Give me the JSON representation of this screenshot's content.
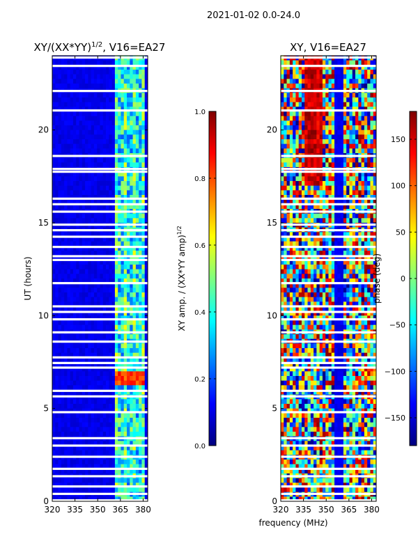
{
  "page_title": "2021-01-02 0.0-24.0",
  "shared_xlabel": "frequency (MHz)",
  "colors": {
    "jet": [
      "#00007f",
      "#0000ff",
      "#007fff",
      "#00ffff",
      "#7fff7f",
      "#ffff00",
      "#ff7f00",
      "#ff0000",
      "#7f0000"
    ]
  },
  "chart_data": [
    {
      "type": "heatmap",
      "name": "amplitude-ratio",
      "title_main": "XY/(XX*YY)",
      "title_sup": "1/2",
      "title_tail": ", V16=EA27",
      "xlabel": "",
      "ylabel": "UT (hours)",
      "xlim": [
        320,
        383
      ],
      "ylim": [
        0,
        24
      ],
      "xticks": [
        320,
        335,
        350,
        365,
        380
      ],
      "yticks": [
        0,
        5,
        10,
        15,
        20
      ],
      "colorbar": {
        "label_main": "XY amp. / (XX*YY amp)",
        "label_sup": "1/2",
        "range": [
          0.0,
          1.0
        ],
        "ticks": [
          "0.0",
          "0.2",
          "0.4",
          "0.6",
          "0.8",
          "1.0"
        ],
        "tick_values": [
          0.0,
          0.2,
          0.4,
          0.6,
          0.8,
          1.0
        ]
      },
      "blank_rows_ut": [
        23.9,
        23.45,
        22.1,
        21.05,
        18.6,
        17.9,
        17.75,
        16.3,
        16.0,
        15.6,
        14.9,
        14.6,
        14.25,
        13.7,
        13.2,
        13.0,
        11.75,
        10.5,
        10.2,
        9.8,
        9.1,
        8.6,
        7.75,
        7.45,
        7.2,
        5.95,
        5.65,
        4.8,
        3.4,
        3.0,
        2.4,
        1.75,
        1.35,
        0.8,
        0.4,
        0.05
      ],
      "bright_band_mhz": [
        361,
        382
      ],
      "flare_ut": [
        6.3,
        6.95
      ],
      "flare_value": 0.9,
      "background_value": 0.08
    },
    {
      "type": "heatmap",
      "name": "xy-phase",
      "title_main": "XY, V16=EA27",
      "title_sup": "",
      "title_tail": "",
      "xlabel": "frequency (MHz)",
      "ylabel": "",
      "xlim": [
        320,
        383
      ],
      "ylim": [
        0,
        24
      ],
      "xticks": [
        320,
        335,
        350,
        365,
        380
      ],
      "yticks": [
        0,
        5,
        10,
        15,
        20
      ],
      "colorbar": {
        "label_main": "phase (deg)",
        "label_sup": "",
        "range": [
          -180,
          180
        ],
        "ticks": [
          "−150",
          "−100",
          "−50",
          "0",
          "50",
          "100",
          "150"
        ],
        "tick_values": [
          -150,
          -100,
          -50,
          0,
          50,
          100,
          150
        ]
      },
      "blank_rows_ut": [
        23.9,
        23.45,
        22.1,
        21.05,
        18.6,
        17.9,
        17.75,
        16.3,
        16.0,
        15.6,
        14.9,
        14.6,
        14.25,
        13.7,
        13.2,
        13.0,
        11.75,
        10.5,
        10.2,
        9.8,
        9.1,
        8.6,
        7.75,
        7.45,
        7.2,
        5.95,
        5.65,
        4.8,
        3.4,
        3.0,
        2.4,
        1.75,
        1.35,
        0.8,
        0.4,
        0.05
      ]
    }
  ]
}
